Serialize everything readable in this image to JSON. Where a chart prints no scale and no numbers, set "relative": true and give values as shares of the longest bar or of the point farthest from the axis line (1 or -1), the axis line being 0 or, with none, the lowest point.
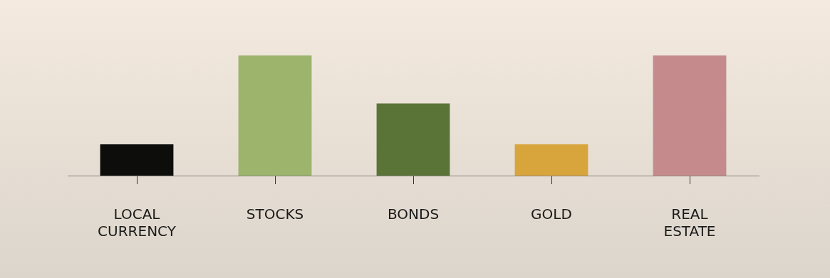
{
  "chart_data": {
    "type": "bar",
    "relative": true,
    "categories": [
      "LOCAL CURRENCY",
      "STOCKS",
      "BONDS",
      "GOLD",
      "REAL ESTATE"
    ],
    "values": [
      0.26,
      1,
      0.6,
      0.26,
      1
    ],
    "colors": [
      "#0d0d0b",
      "#9cb46c",
      "#5a7437",
      "#d8a53c",
      "#c48a8c"
    ],
    "grid": false,
    "legend": false
  }
}
